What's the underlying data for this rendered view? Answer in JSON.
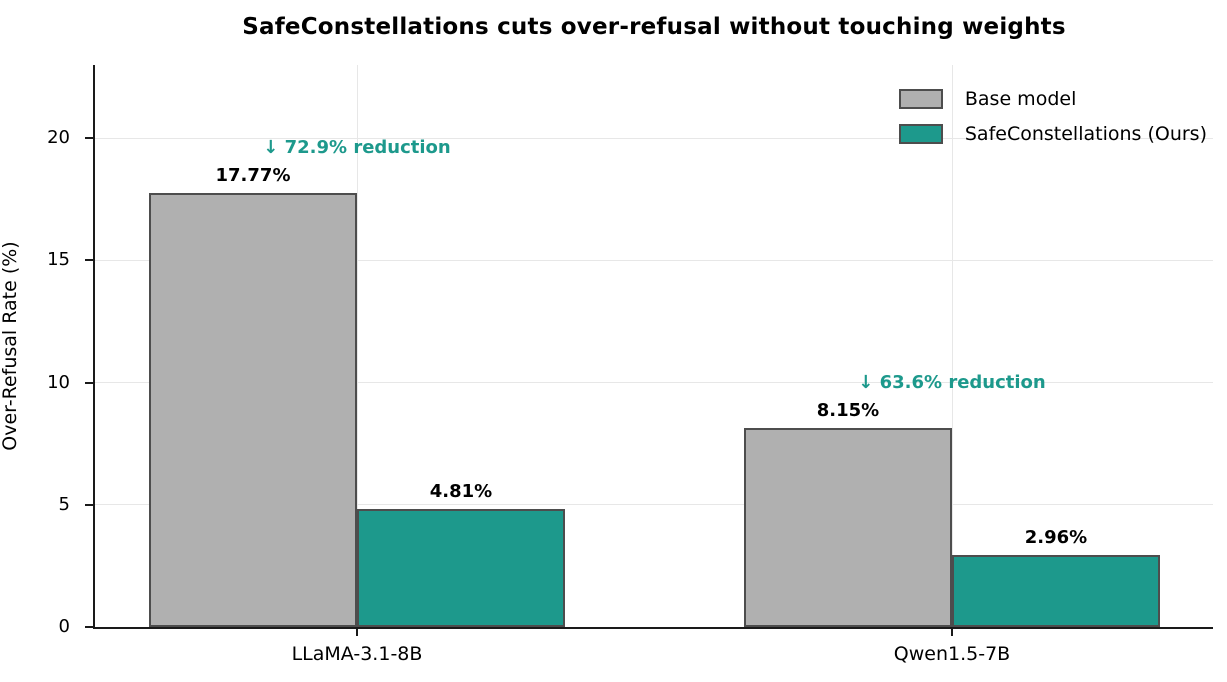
{
  "chart_data": {
    "type": "bar",
    "title": "SafeConstellations cuts over-refusal without touching weights",
    "xlabel": "",
    "ylabel": "Over-Refusal Rate (%)",
    "categories": [
      "LLaMA-3.1-8B",
      "Qwen1.5-7B"
    ],
    "series": [
      {
        "name": "Base model",
        "color": "#b0b0b0",
        "edge_color": "#4d4d4d",
        "values": [
          17.77,
          8.15
        ],
        "value_labels": [
          "17.77%",
          "8.15%"
        ]
      },
      {
        "name": "SafeConstellations (Ours)",
        "color": "#1d998c",
        "edge_color": "#4d4d4d",
        "values": [
          4.81,
          2.96
        ],
        "value_labels": [
          "4.81%",
          "2.96%"
        ]
      }
    ],
    "annotations": [
      {
        "text": "↓ 72.9% reduction",
        "category_index": 0,
        "color": "#1d998c"
      },
      {
        "text": "↓ 63.6% reduction",
        "category_index": 1,
        "color": "#1d998c"
      }
    ],
    "yticks": [
      0,
      5,
      10,
      15,
      20
    ],
    "ylim": [
      0,
      23
    ],
    "grid": true,
    "legend_position": "upper right"
  },
  "colors": {
    "bar_gray": "#b0b0b0",
    "accent_teal": "#1d998c",
    "bar_edge": "#4d4d4d",
    "gridline": "#e7e7e7",
    "axis": "#1a1a1a",
    "text": "#000000",
    "background": "#ffffff"
  }
}
